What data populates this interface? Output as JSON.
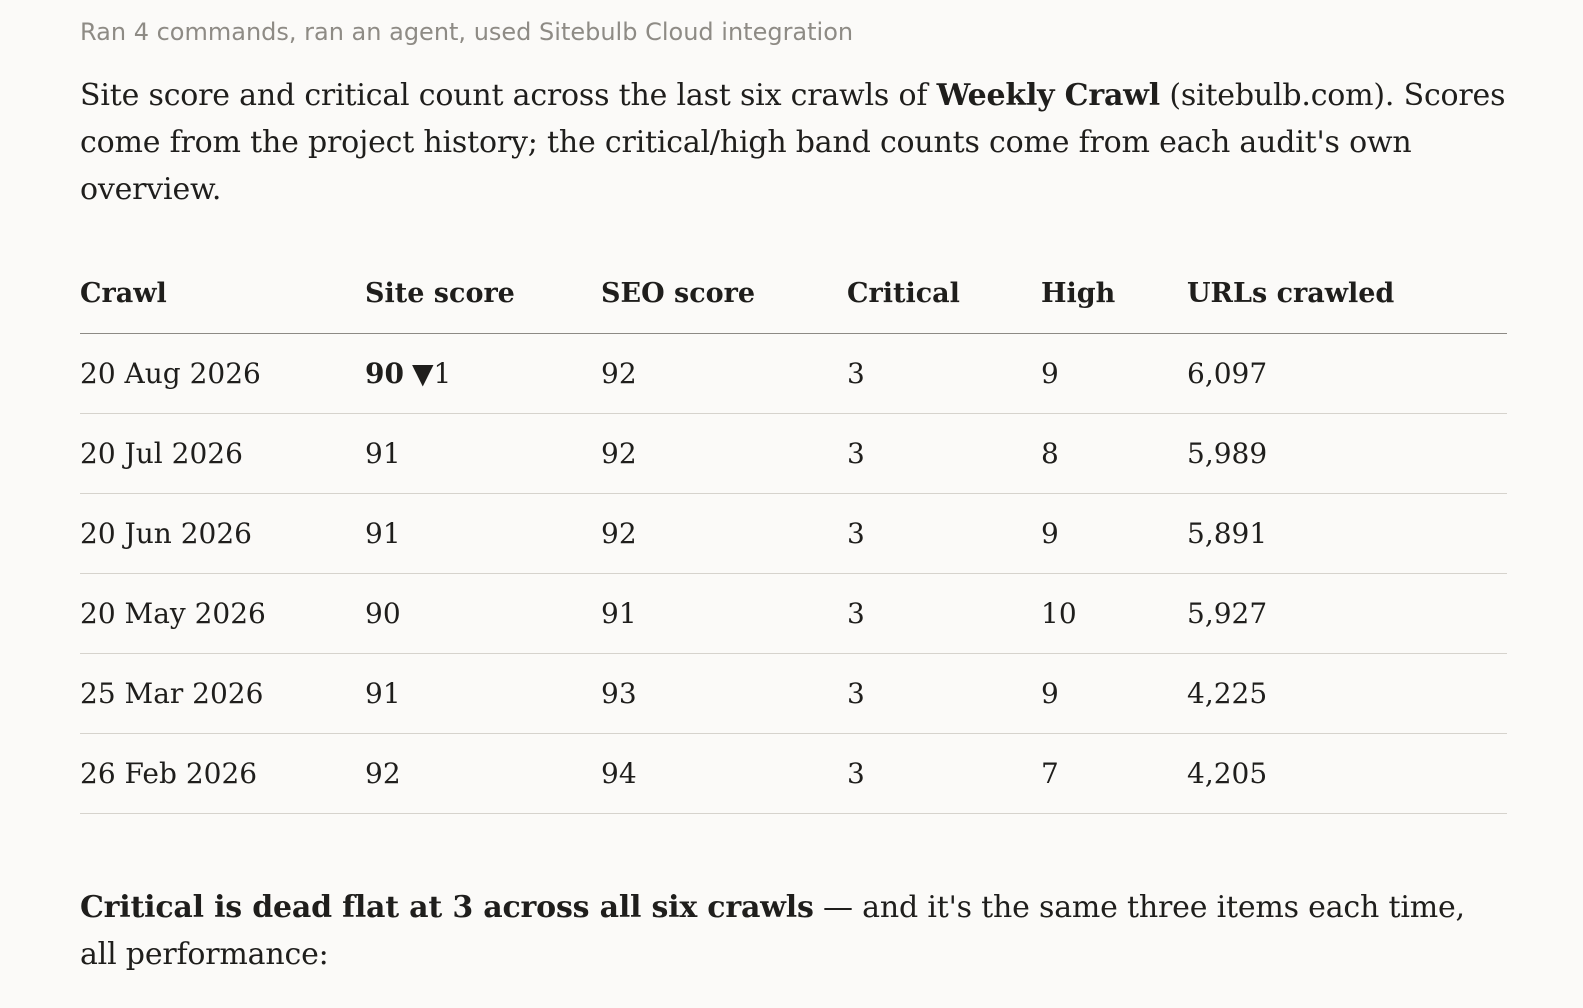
{
  "activity_summary": "Ran 4 commands, ran an agent, used Sitebulb Cloud integration",
  "intro": {
    "before": "Site score and critical count across the last six crawls of ",
    "project": "Weekly Crawl",
    "after": " (sitebulb.com). Scores come from the project history; the critical/high band counts come from each audit's own overview."
  },
  "table": {
    "headers": [
      "Crawl",
      "Site score",
      "SEO score",
      "Critical",
      "High",
      "URLs crawled"
    ],
    "rows": [
      {
        "crawl": "20 Aug 2026",
        "site_score": "90",
        "site_delta": "▼1",
        "seo": "92",
        "critical": "3",
        "high": "9",
        "urls": "6,097"
      },
      {
        "crawl": "20 Jul 2026",
        "site_score": "91",
        "site_delta": "",
        "seo": "92",
        "critical": "3",
        "high": "8",
        "urls": "5,989"
      },
      {
        "crawl": "20 Jun 2026",
        "site_score": "91",
        "site_delta": "",
        "seo": "92",
        "critical": "3",
        "high": "9",
        "urls": "5,891"
      },
      {
        "crawl": "20 May 2026",
        "site_score": "90",
        "site_delta": "",
        "seo": "91",
        "critical": "3",
        "high": "10",
        "urls": "5,927"
      },
      {
        "crawl": "25 Mar 2026",
        "site_score": "91",
        "site_delta": "",
        "seo": "93",
        "critical": "3",
        "high": "9",
        "urls": "4,225"
      },
      {
        "crawl": "26 Feb 2026",
        "site_score": "92",
        "site_delta": "",
        "seo": "94",
        "critical": "3",
        "high": "7",
        "urls": "4,205"
      }
    ]
  },
  "outro": {
    "bold": "Critical is dead flat at 3 across all six crawls",
    "rest": " — and it's the same three items each time, all performance:"
  }
}
